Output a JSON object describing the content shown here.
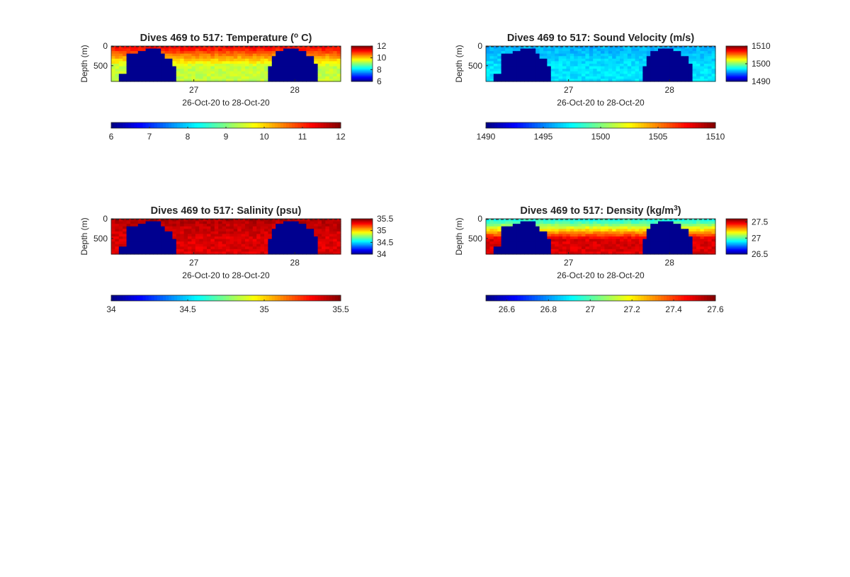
{
  "chart_data": [
    {
      "type": "heatmap",
      "title": "Dives 469 to 517: Temperature (",
      "title_super": "o",
      "title_suffix": " C)",
      "ylabel": "Depth (m)",
      "xlabel": "26-Oct-20 to 28-Oct-20",
      "x_ticks": [
        "27",
        "28"
      ],
      "y_ticks": [
        "0",
        "500"
      ],
      "colorbar_ticks": [
        "6",
        "8",
        "10",
        "12"
      ],
      "bottom_colorbar_ticks": [
        "6",
        "7",
        "8",
        "9",
        "10",
        "11",
        "12"
      ],
      "clim": [
        6,
        12
      ],
      "ylim": [
        0,
        900
      ],
      "surface_value": 11.2,
      "deep_value": 9.4,
      "colormap": "jet",
      "nodata_color": "#00008f"
    },
    {
      "type": "heatmap",
      "title": "Dives 469 to 517: Sound Velocity (m/s)",
      "title_super": "",
      "title_suffix": "",
      "ylabel": "Depth (m)",
      "xlabel": "26-Oct-20 to 28-Oct-20",
      "x_ticks": [
        "27",
        "28"
      ],
      "y_ticks": [
        "0",
        "500"
      ],
      "colorbar_ticks": [
        "1490",
        "1500",
        "1510"
      ],
      "bottom_colorbar_ticks": [
        "1490",
        "1495",
        "1500",
        "1505",
        "1510"
      ],
      "clim": [
        1490,
        1510
      ],
      "ylim": [
        0,
        900
      ],
      "surface_value": 1496,
      "deep_value": 1497,
      "colormap": "jet",
      "nodata_color": "#00008f"
    },
    {
      "type": "heatmap",
      "title": "Dives 469 to 517: Salinity (psu)",
      "title_super": "",
      "title_suffix": "",
      "ylabel": "Depth (m)",
      "xlabel": "26-Oct-20 to 28-Oct-20",
      "x_ticks": [
        "27",
        "28"
      ],
      "y_ticks": [
        "0",
        "500"
      ],
      "colorbar_ticks": [
        "34",
        "34.5",
        "35",
        "35.5"
      ],
      "bottom_colorbar_ticks": [
        "34",
        "34.5",
        "35",
        "35.5"
      ],
      "clim": [
        34,
        35.5
      ],
      "ylim": [
        0,
        900
      ],
      "surface_value": 35.42,
      "deep_value": 35.36,
      "colormap": "jet",
      "nodata_color": "#00008f"
    },
    {
      "type": "heatmap",
      "title": "Dives 469 to 517: Density (kg/m",
      "title_super": "3",
      "title_suffix": ")",
      "ylabel": "Depth (m)",
      "xlabel": "26-Oct-20 to 28-Oct-20",
      "x_ticks": [
        "27",
        "28"
      ],
      "y_ticks": [
        "0",
        "500"
      ],
      "colorbar_ticks": [
        "26.5",
        "27",
        "27.5"
      ],
      "bottom_colorbar_ticks": [
        "26.6",
        "26.8",
        "27",
        "27.2",
        "27.4",
        "27.6"
      ],
      "clim": [
        26.5,
        27.6
      ],
      "ylim": [
        0,
        900
      ],
      "surface_value": 26.95,
      "deep_value": 27.5,
      "colormap": "jet",
      "nodata_color": "#00008f"
    }
  ]
}
